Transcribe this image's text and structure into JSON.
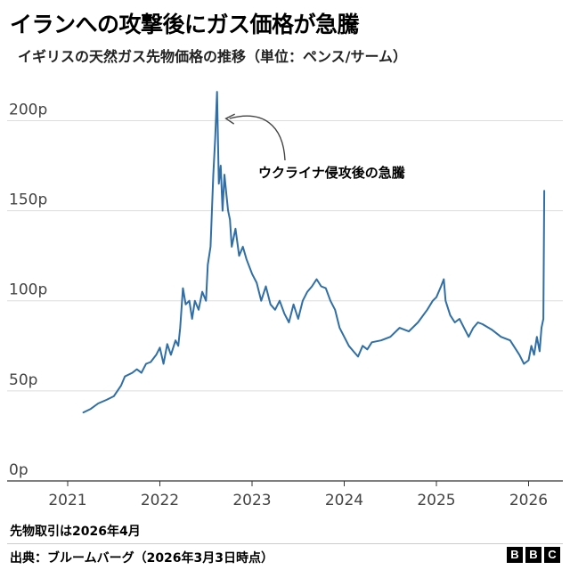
{
  "title": "イランへの攻撃後にガス価格が急騰",
  "subtitle": "イギリスの天然ガス先物価格の推移（単位：ペンス/サーム）",
  "note": "先物取引は2026年4月",
  "source": "出典：ブルームバーグ（2026年3月3日時点）",
  "logo": [
    "B",
    "B",
    "C"
  ],
  "chart_data": {
    "type": "line",
    "title": "イランへの攻撃後にガス価格が急騰",
    "subtitle": "イギリスの天然ガス先物価格の推移（単位：ペンス/サーム）",
    "x_ticks": [
      2021,
      2022,
      2023,
      2024,
      2025,
      2026
    ],
    "x_tick_labels": [
      "2021",
      "2022",
      "2023",
      "2024",
      "2025",
      "2026"
    ],
    "y_ticks": [
      0,
      50,
      100,
      150,
      200
    ],
    "y_tick_labels": [
      "0p",
      "50p",
      "100p",
      "150p",
      "200p"
    ],
    "xlim": [
      2020.9,
      2026.25
    ],
    "ylim": [
      0,
      220
    ],
    "grid": "horizontal",
    "line_color": "#2f6fa6",
    "annotation": {
      "text": "ウクライナ侵攻後の急騰",
      "x": 2022.62,
      "y": 215
    },
    "series": [
      {
        "points": [
          [
            2021.17,
            38
          ],
          [
            2021.25,
            40
          ],
          [
            2021.33,
            43
          ],
          [
            2021.42,
            45
          ],
          [
            2021.5,
            47
          ],
          [
            2021.58,
            53
          ],
          [
            2021.62,
            58
          ],
          [
            2021.7,
            60
          ],
          [
            2021.75,
            62
          ],
          [
            2021.8,
            60
          ],
          [
            2021.85,
            65
          ],
          [
            2021.9,
            66
          ],
          [
            2021.96,
            70
          ],
          [
            2022.0,
            74
          ],
          [
            2022.04,
            65
          ],
          [
            2022.08,
            76
          ],
          [
            2022.12,
            70
          ],
          [
            2022.17,
            78
          ],
          [
            2022.2,
            75
          ],
          [
            2022.22,
            85
          ],
          [
            2022.25,
            107
          ],
          [
            2022.28,
            98
          ],
          [
            2022.32,
            100
          ],
          [
            2022.35,
            90
          ],
          [
            2022.38,
            100
          ],
          [
            2022.42,
            95
          ],
          [
            2022.46,
            105
          ],
          [
            2022.5,
            100
          ],
          [
            2022.52,
            120
          ],
          [
            2022.55,
            130
          ],
          [
            2022.58,
            170
          ],
          [
            2022.6,
            190
          ],
          [
            2022.62,
            216
          ],
          [
            2022.64,
            165
          ],
          [
            2022.66,
            175
          ],
          [
            2022.68,
            150
          ],
          [
            2022.7,
            170
          ],
          [
            2022.72,
            160
          ],
          [
            2022.74,
            150
          ],
          [
            2022.76,
            145
          ],
          [
            2022.78,
            130
          ],
          [
            2022.82,
            140
          ],
          [
            2022.86,
            125
          ],
          [
            2022.9,
            130
          ],
          [
            2022.94,
            123
          ],
          [
            2023.0,
            115
          ],
          [
            2023.05,
            110
          ],
          [
            2023.1,
            100
          ],
          [
            2023.15,
            108
          ],
          [
            2023.2,
            98
          ],
          [
            2023.25,
            95
          ],
          [
            2023.3,
            100
          ],
          [
            2023.35,
            93
          ],
          [
            2023.4,
            88
          ],
          [
            2023.45,
            98
          ],
          [
            2023.5,
            90
          ],
          [
            2023.55,
            100
          ],
          [
            2023.6,
            105
          ],
          [
            2023.65,
            108
          ],
          [
            2023.7,
            112
          ],
          [
            2023.75,
            108
          ],
          [
            2023.8,
            107
          ],
          [
            2023.85,
            100
          ],
          [
            2023.9,
            95
          ],
          [
            2023.95,
            85
          ],
          [
            2024.0,
            80
          ],
          [
            2024.05,
            75
          ],
          [
            2024.1,
            72
          ],
          [
            2024.15,
            69
          ],
          [
            2024.2,
            75
          ],
          [
            2024.25,
            73
          ],
          [
            2024.3,
            77
          ],
          [
            2024.4,
            78
          ],
          [
            2024.5,
            80
          ],
          [
            2024.6,
            85
          ],
          [
            2024.7,
            83
          ],
          [
            2024.8,
            88
          ],
          [
            2024.9,
            95
          ],
          [
            2024.96,
            100
          ],
          [
            2025.0,
            102
          ],
          [
            2025.05,
            108
          ],
          [
            2025.08,
            112
          ],
          [
            2025.1,
            100
          ],
          [
            2025.15,
            92
          ],
          [
            2025.2,
            88
          ],
          [
            2025.25,
            90
          ],
          [
            2025.3,
            85
          ],
          [
            2025.35,
            80
          ],
          [
            2025.4,
            85
          ],
          [
            2025.45,
            88
          ],
          [
            2025.5,
            87
          ],
          [
            2025.6,
            84
          ],
          [
            2025.7,
            80
          ],
          [
            2025.8,
            78
          ],
          [
            2025.9,
            70
          ],
          [
            2025.95,
            65
          ],
          [
            2026.0,
            67
          ],
          [
            2026.03,
            75
          ],
          [
            2026.06,
            70
          ],
          [
            2026.09,
            80
          ],
          [
            2026.12,
            72
          ],
          [
            2026.14,
            85
          ],
          [
            2026.16,
            90
          ],
          [
            2026.17,
            161
          ]
        ]
      }
    ]
  }
}
